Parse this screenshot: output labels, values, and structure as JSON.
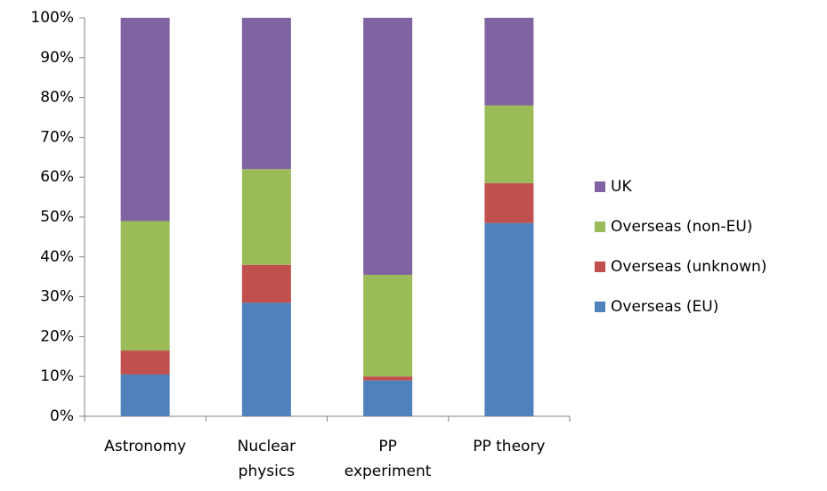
{
  "chart_data": {
    "type": "stacked_bar",
    "categories": [
      "Astronomy",
      "Nuclear\nphysics",
      "PP\nexperiment",
      "PP theory"
    ],
    "series": [
      {
        "name": "Overseas (EU)",
        "color": "#4f81bd",
        "values": [
          10.5,
          28.5,
          9,
          48.5
        ]
      },
      {
        "name": "Overseas (unknown)",
        "color": "#c0504d",
        "values": [
          6,
          9.5,
          1,
          10
        ]
      },
      {
        "name": "Overseas (non-EU)",
        "color": "#9bbb59",
        "values": [
          32.5,
          24,
          25.5,
          19.5
        ]
      },
      {
        "name": "UK",
        "color": "#8064a2",
        "values": [
          51,
          38,
          64.5,
          22
        ]
      }
    ],
    "ylim": [
      0,
      100
    ],
    "yticks": [
      {
        "value": 0,
        "label": "0%"
      },
      {
        "value": 10,
        "label": "10%"
      },
      {
        "value": 20,
        "label": "20%"
      },
      {
        "value": 30,
        "label": "30%"
      },
      {
        "value": 40,
        "label": "40%"
      },
      {
        "value": 50,
        "label": "50%"
      },
      {
        "value": 60,
        "label": "60%"
      },
      {
        "value": 70,
        "label": "70%"
      },
      {
        "value": 80,
        "label": "80%"
      },
      {
        "value": 90,
        "label": "90%"
      },
      {
        "value": 100,
        "label": "100%"
      }
    ],
    "grid": false,
    "legend": "right"
  }
}
